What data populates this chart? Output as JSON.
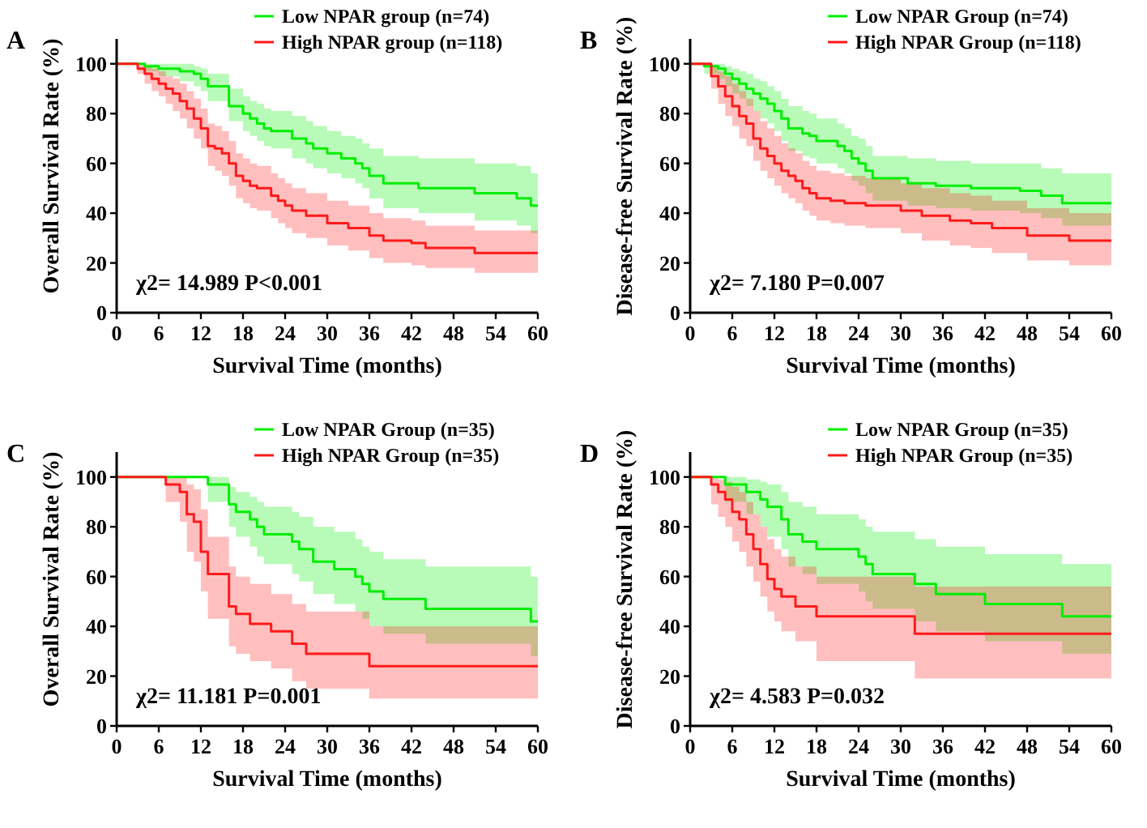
{
  "chart_data": [
    {
      "type": "step",
      "title": "A",
      "xlabel": "Survival Time (months)",
      "ylabel": "Overall Survival Rate (%)",
      "xlim": [
        0,
        60
      ],
      "ylim": [
        0,
        110
      ],
      "xticks": [
        0,
        6,
        12,
        18,
        24,
        30,
        36,
        42,
        48,
        54,
        60
      ],
      "yticks": [
        0,
        20,
        40,
        60,
        80,
        100
      ],
      "grid": false,
      "legend": "top right",
      "annotations": [
        "χ2= 14.989 P<0.001"
      ],
      "series": [
        {
          "name": "Low NPAR group (n=74)",
          "color": "#00ee00",
          "x": [
            0,
            4,
            6,
            9,
            11,
            12,
            13,
            16,
            18,
            19,
            20,
            21,
            22,
            25,
            27,
            28,
            30,
            32,
            34,
            35,
            36,
            38,
            43,
            51,
            57,
            59,
            60
          ],
          "values": [
            100,
            99,
            98,
            97,
            96,
            94,
            91,
            83,
            80,
            78,
            76,
            74,
            73,
            70,
            68,
            66,
            64,
            62,
            60,
            58,
            55,
            52,
            50,
            48,
            46,
            43,
            43
          ],
          "lower": [
            100,
            97,
            95,
            93,
            91,
            89,
            85,
            77,
            73,
            71,
            69,
            67,
            66,
            62,
            60,
            58,
            56,
            54,
            52,
            50,
            46,
            42,
            40,
            37,
            35,
            32,
            32
          ],
          "upper": [
            100,
            100,
            100,
            100,
            99,
            98,
            96,
            90,
            87,
            85,
            84,
            82,
            81,
            79,
            77,
            75,
            73,
            71,
            70,
            68,
            66,
            63,
            62,
            60,
            59,
            56,
            56
          ]
        },
        {
          "name": "High NPAR group (n=118)",
          "color": "#ff1a1a",
          "x": [
            0,
            3,
            4,
            5,
            6,
            7,
            8,
            9,
            10,
            11,
            12,
            13,
            14,
            15,
            16,
            17,
            18,
            19,
            20,
            22,
            23,
            24,
            25,
            27,
            30,
            33,
            36,
            38,
            42,
            44,
            51,
            60
          ],
          "values": [
            100,
            98,
            96,
            94,
            92,
            90,
            88,
            85,
            82,
            78,
            74,
            67,
            66,
            64,
            60,
            55,
            53,
            51,
            50,
            47,
            45,
            43,
            41,
            39,
            36,
            34,
            31,
            29,
            28,
            26,
            24,
            24
          ],
          "lower": [
            100,
            96,
            92,
            89,
            87,
            84,
            81,
            78,
            74,
            70,
            66,
            59,
            57,
            55,
            51,
            46,
            44,
            42,
            41,
            38,
            36,
            34,
            32,
            30,
            27,
            25,
            22,
            20,
            19,
            18,
            16,
            16
          ],
          "upper": [
            100,
            100,
            99,
            98,
            97,
            95,
            94,
            92,
            89,
            86,
            82,
            76,
            75,
            73,
            69,
            64,
            62,
            60,
            59,
            56,
            54,
            52,
            50,
            48,
            45,
            43,
            40,
            38,
            37,
            35,
            33,
            33
          ]
        }
      ]
    },
    {
      "type": "step",
      "title": "B",
      "xlabel": "Survival Time (months)",
      "ylabel": "Disease-free Survival Rate (%)",
      "xlim": [
        0,
        60
      ],
      "ylim": [
        0,
        110
      ],
      "xticks": [
        0,
        6,
        12,
        18,
        24,
        30,
        36,
        42,
        48,
        54,
        60
      ],
      "yticks": [
        0,
        20,
        40,
        60,
        80,
        100
      ],
      "grid": false,
      "legend": "top right",
      "annotations": [
        "χ2= 7.180 P=0.007"
      ],
      "series": [
        {
          "name": "Low NPAR Group (n=74)",
          "color": "#00ee00",
          "x": [
            0,
            2,
            4,
            5,
            6,
            7,
            8,
            9,
            10,
            11,
            12,
            13,
            14,
            16,
            17,
            18,
            21,
            22,
            23,
            24,
            25,
            26,
            31,
            35,
            40,
            47,
            50,
            53,
            60
          ],
          "values": [
            100,
            99,
            98,
            96,
            94,
            92,
            90,
            88,
            86,
            84,
            81,
            78,
            74,
            72,
            71,
            69,
            67,
            65,
            62,
            60,
            57,
            54,
            52,
            51,
            50,
            49,
            47,
            44,
            44
          ],
          "lower": [
            100,
            96,
            94,
            91,
            88,
            86,
            83,
            81,
            78,
            76,
            73,
            69,
            65,
            63,
            62,
            60,
            58,
            56,
            53,
            51,
            48,
            45,
            43,
            42,
            41,
            40,
            38,
            35,
            35
          ],
          "upper": [
            100,
            100,
            100,
            99,
            98,
            97,
            96,
            94,
            93,
            91,
            89,
            86,
            83,
            81,
            80,
            78,
            76,
            74,
            71,
            70,
            67,
            63,
            62,
            61,
            60,
            60,
            58,
            56,
            56
          ]
        },
        {
          "name": "High NPAR Group (n=118)",
          "color": "#ff1a1a",
          "x": [
            0,
            3,
            4,
            5,
            6,
            7,
            8,
            9,
            10,
            11,
            12,
            13,
            14,
            15,
            16,
            17,
            18,
            20,
            22,
            25,
            30,
            33,
            37,
            40,
            43,
            48,
            54,
            60
          ],
          "values": [
            100,
            95,
            91,
            87,
            83,
            79,
            76,
            70,
            66,
            63,
            60,
            57,
            55,
            53,
            50,
            48,
            46,
            45,
            44,
            43,
            41,
            39,
            37,
            36,
            34,
            31,
            29,
            29
          ],
          "lower": [
            100,
            90,
            84,
            79,
            75,
            70,
            67,
            61,
            57,
            54,
            51,
            48,
            46,
            44,
            41,
            39,
            37,
            36,
            35,
            34,
            32,
            29,
            27,
            26,
            24,
            21,
            19,
            19
          ],
          "upper": [
            100,
            99,
            97,
            95,
            92,
            89,
            86,
            81,
            77,
            74,
            71,
            68,
            66,
            64,
            61,
            59,
            57,
            56,
            55,
            54,
            52,
            50,
            48,
            47,
            45,
            42,
            40,
            40
          ]
        }
      ]
    },
    {
      "type": "step",
      "title": "C",
      "xlabel": "Survival Time (months)",
      "ylabel": "Overall Survival Rate (%)",
      "xlim": [
        0,
        60
      ],
      "ylim": [
        0,
        110
      ],
      "xticks": [
        0,
        6,
        12,
        18,
        24,
        30,
        36,
        42,
        48,
        54,
        60
      ],
      "yticks": [
        0,
        20,
        40,
        60,
        80,
        100
      ],
      "grid": false,
      "legend": "top right",
      "annotations": [
        "χ2= 11.181 P=0.001"
      ],
      "series": [
        {
          "name": "Low NPAR Group (n=35)",
          "color": "#00ee00",
          "x": [
            0,
            13,
            16,
            17,
            19,
            20,
            21,
            25,
            26,
            28,
            31,
            34,
            35,
            36,
            38,
            44,
            59,
            60
          ],
          "values": [
            100,
            97,
            89,
            86,
            83,
            80,
            77,
            74,
            71,
            66,
            63,
            60,
            57,
            54,
            51,
            47,
            42,
            42
          ],
          "lower": [
            100,
            90,
            80,
            76,
            72,
            68,
            65,
            61,
            58,
            53,
            49,
            46,
            43,
            40,
            37,
            33,
            28,
            28
          ],
          "upper": [
            100,
            100,
            96,
            94,
            92,
            90,
            88,
            86,
            84,
            80,
            78,
            75,
            72,
            70,
            67,
            64,
            60,
            60
          ]
        },
        {
          "name": "High NPAR Group (n=35)",
          "color": "#ff1a1a",
          "x": [
            0,
            7,
            9,
            10,
            11,
            12,
            13,
            16,
            17,
            19,
            22,
            25,
            27,
            36,
            60
          ],
          "values": [
            100,
            97,
            94,
            85,
            82,
            70,
            61,
            48,
            45,
            41,
            38,
            33,
            29,
            24,
            24
          ],
          "lower": [
            100,
            90,
            82,
            70,
            66,
            54,
            43,
            32,
            29,
            26,
            23,
            18,
            15,
            11,
            11
          ],
          "upper": [
            100,
            100,
            100,
            97,
            95,
            87,
            76,
            64,
            60,
            57,
            53,
            49,
            46,
            40,
            40
          ]
        }
      ]
    },
    {
      "type": "step",
      "title": "D",
      "xlabel": "Survival Time (months)",
      "ylabel": "Disease-free Survival Rate (%)",
      "xlim": [
        0,
        60
      ],
      "ylim": [
        0,
        110
      ],
      "xticks": [
        0,
        6,
        12,
        18,
        24,
        30,
        36,
        42,
        48,
        54,
        60
      ],
      "yticks": [
        0,
        20,
        40,
        60,
        80,
        100
      ],
      "grid": false,
      "legend": "top right",
      "annotations": [
        "χ2= 4.583 P=0.032"
      ],
      "series": [
        {
          "name": "Low NPAR Group (n=35)",
          "color": "#00ee00",
          "x": [
            0,
            5,
            8,
            10,
            11,
            13,
            14,
            16,
            18,
            24,
            25,
            26,
            32,
            35,
            42,
            53,
            60
          ],
          "values": [
            100,
            97,
            94,
            91,
            88,
            83,
            77,
            74,
            71,
            68,
            65,
            61,
            57,
            53,
            49,
            44,
            44
          ],
          "lower": [
            100,
            90,
            85,
            80,
            76,
            71,
            64,
            61,
            57,
            54,
            50,
            47,
            42,
            38,
            34,
            29,
            29
          ],
          "upper": [
            100,
            100,
            99,
            98,
            97,
            94,
            90,
            88,
            85,
            83,
            80,
            78,
            75,
            72,
            69,
            65,
            65
          ]
        },
        {
          "name": "High NPAR Group (n=35)",
          "color": "#ff1a1a",
          "x": [
            0,
            3,
            4,
            5,
            6,
            7,
            8,
            9,
            10,
            11,
            12,
            13,
            15,
            18,
            32,
            60
          ],
          "values": [
            100,
            97,
            94,
            91,
            86,
            83,
            77,
            71,
            65,
            59,
            55,
            52,
            48,
            44,
            37,
            37
          ],
          "lower": [
            100,
            89,
            84,
            80,
            74,
            70,
            64,
            58,
            52,
            46,
            42,
            38,
            34,
            26,
            19,
            19
          ],
          "upper": [
            100,
            100,
            99,
            98,
            96,
            94,
            90,
            85,
            80,
            75,
            71,
            68,
            64,
            60,
            56,
            56
          ]
        }
      ]
    }
  ]
}
